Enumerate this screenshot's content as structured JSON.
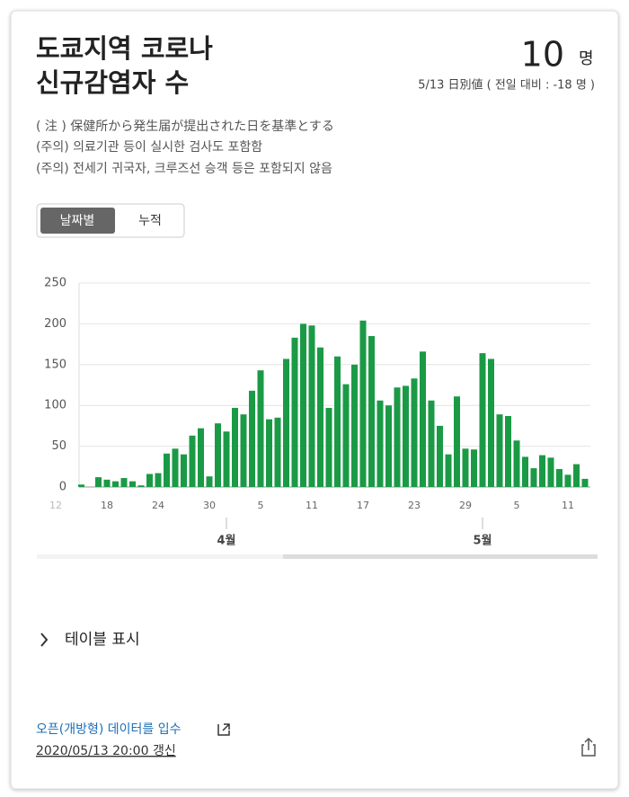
{
  "header": {
    "title_lines": [
      "도쿄지역 코로나",
      "신규감염자 수"
    ],
    "count": "10",
    "unit": "명",
    "date_note": "5/13 日別値 ( 전일 대비 : -18 명 )"
  },
  "notes": [
    "( 注 ) 保健所から発生届が提出された日を基準とする",
    "(주의) 의료기관 등이 실시한 검사도 포함함",
    "(주의) 전세기 귀국자, 크루즈선 승객 등은 포함되지 않음"
  ],
  "toggle": [
    "날짜별",
    "누적"
  ],
  "chart_data": {
    "type": "bar",
    "color": "#1b9a46",
    "grid": true,
    "ylim": [
      0,
      250
    ],
    "yticks": [
      0,
      50,
      100,
      150,
      200,
      250
    ],
    "x_leading_label": "12",
    "categories": [
      null,
      null,
      null,
      "18",
      null,
      null,
      null,
      null,
      null,
      "24",
      null,
      null,
      null,
      null,
      null,
      "30",
      null,
      null,
      null,
      null,
      null,
      "5",
      null,
      null,
      null,
      null,
      null,
      "11",
      null,
      null,
      null,
      null,
      null,
      "17",
      null,
      null,
      null,
      null,
      null,
      "23",
      null,
      null,
      null,
      null,
      null,
      "29",
      null,
      null,
      null,
      null,
      null,
      "5",
      null,
      null,
      null,
      null,
      null,
      "11",
      null,
      null
    ],
    "values": [
      3,
      0,
      12,
      9,
      7,
      11,
      7,
      2,
      16,
      17,
      41,
      47,
      40,
      63,
      72,
      13,
      78,
      68,
      97,
      89,
      118,
      143,
      83,
      85,
      157,
      183,
      200,
      198,
      171,
      97,
      160,
      126,
      150,
      204,
      185,
      106,
      100,
      122,
      124,
      133,
      166,
      106,
      75,
      40,
      111,
      47,
      46,
      164,
      157,
      89,
      87,
      57,
      37,
      23,
      39,
      36,
      22,
      15,
      28,
      10
    ],
    "months": [
      {
        "label": "4월",
        "at": 17
      },
      {
        "label": "5월",
        "at": 47
      }
    ]
  },
  "table_toggle": "테이블 표시",
  "footer": {
    "link": "오픈(개방형) 데이터를 입수",
    "updated": "2020/05/13 20:00 갱신"
  }
}
